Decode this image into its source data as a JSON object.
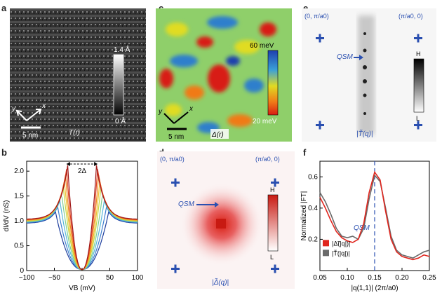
{
  "panels": {
    "a": {
      "letter": "a",
      "colorbar_top": "1.4 Å",
      "colorbar_bottom": "0 Å",
      "axis_y": "y",
      "axis_x": "x",
      "scale": "5 nm",
      "map_label": "T(r)"
    },
    "b": {
      "letter": "b",
      "gap_label": "2Δ"
    },
    "c": {
      "letter": "c",
      "colorbar_top": "60 meV",
      "colorbar_bottom": "20 meV",
      "axis_y": "y",
      "axis_x": "x",
      "scale": "5 nm",
      "map_label": "Δ(r)",
      "colors": {
        "low": "#1e3fae",
        "mid": "#e0dc22",
        "high": "#d81e12"
      }
    },
    "d": {
      "letter": "d",
      "corner_tl": "(0, π/a0)",
      "corner_tr": "(π/a0, 0)",
      "q_label": "QSM",
      "colorbar_top": "H",
      "colorbar_bottom": "L",
      "map_label": "|Δ̃(q)|",
      "color": "#d81e12"
    },
    "e": {
      "letter": "e",
      "corner_tl": "(0, π/a0)",
      "corner_tr": "(π/a0, 0)",
      "q_label": "QSM",
      "colorbar_top": "H",
      "colorbar_bottom": "L",
      "map_label": "|T̃(q)|"
    },
    "f": {
      "letter": "f",
      "q_label": "QSM"
    }
  },
  "chart_data": [
    {
      "type": "line",
      "panel": "b",
      "xlabel": "VB (mV)",
      "ylabel": "dI/dV (nS)",
      "xlim": [
        -100,
        100
      ],
      "ylim": [
        0,
        2.2
      ],
      "xticks": [
        "−100",
        "−50",
        "0",
        "50",
        "100"
      ],
      "yticks": [
        "0",
        "0.5",
        "1.0",
        "1.5",
        "2.0"
      ],
      "series": [
        {
          "color": "#1f3f9e",
          "gap": 48,
          "peak": 1.18,
          "bg": 0.95
        },
        {
          "color": "#3f7fcf",
          "gap": 44,
          "peak": 1.28,
          "bg": 0.96
        },
        {
          "color": "#58b8d8",
          "gap": 40,
          "peak": 1.4,
          "bg": 0.97
        },
        {
          "color": "#7fcf8f",
          "gap": 37,
          "peak": 1.55,
          "bg": 0.98
        },
        {
          "color": "#c8d840",
          "gap": 34,
          "peak": 1.68,
          "bg": 0.99
        },
        {
          "color": "#f0c030",
          "gap": 32,
          "peak": 1.8,
          "bg": 1.0
        },
        {
          "color": "#f08a20",
          "gap": 30,
          "peak": 1.92,
          "bg": 1.01
        },
        {
          "color": "#e04020",
          "gap": 28,
          "peak": 2.04,
          "bg": 1.02
        },
        {
          "color": "#a01818",
          "gap": 26,
          "peak": 2.12,
          "bg": 1.03
        }
      ]
    },
    {
      "type": "line",
      "panel": "f",
      "xlabel": "|q(1,1)| (2π/a0)",
      "ylabel": "Normalized |FT|",
      "xlim": [
        0.05,
        0.25
      ],
      "ylim": [
        0.0,
        0.7
      ],
      "xticks": [
        "0.05",
        "0.10",
        "0.15",
        "0.20",
        "0.25"
      ],
      "yticks": [
        "0.2",
        "0.4",
        "0.6"
      ],
      "vline": 0.15,
      "series": [
        {
          "name": "|Δ̃(|q|)|",
          "color": "#e0261e",
          "x": [
            0.05,
            0.06,
            0.07,
            0.08,
            0.09,
            0.1,
            0.11,
            0.12,
            0.13,
            0.14,
            0.15,
            0.16,
            0.17,
            0.18,
            0.19,
            0.2,
            0.21,
            0.22,
            0.23,
            0.24,
            0.25
          ],
          "y": [
            0.47,
            0.4,
            0.32,
            0.25,
            0.21,
            0.19,
            0.18,
            0.2,
            0.3,
            0.5,
            0.63,
            0.58,
            0.38,
            0.2,
            0.12,
            0.09,
            0.08,
            0.07,
            0.08,
            0.1,
            0.09
          ]
        },
        {
          "name": "|T̃(|q|)|",
          "color": "#6a6a6a",
          "x": [
            0.05,
            0.06,
            0.07,
            0.08,
            0.09,
            0.1,
            0.11,
            0.12,
            0.13,
            0.14,
            0.15,
            0.16,
            0.17,
            0.18,
            0.19,
            0.2,
            0.21,
            0.22,
            0.23,
            0.24,
            0.25
          ],
          "y": [
            0.5,
            0.44,
            0.36,
            0.27,
            0.22,
            0.21,
            0.22,
            0.2,
            0.27,
            0.46,
            0.61,
            0.57,
            0.4,
            0.22,
            0.13,
            0.1,
            0.09,
            0.08,
            0.1,
            0.12,
            0.13
          ]
        }
      ]
    }
  ]
}
